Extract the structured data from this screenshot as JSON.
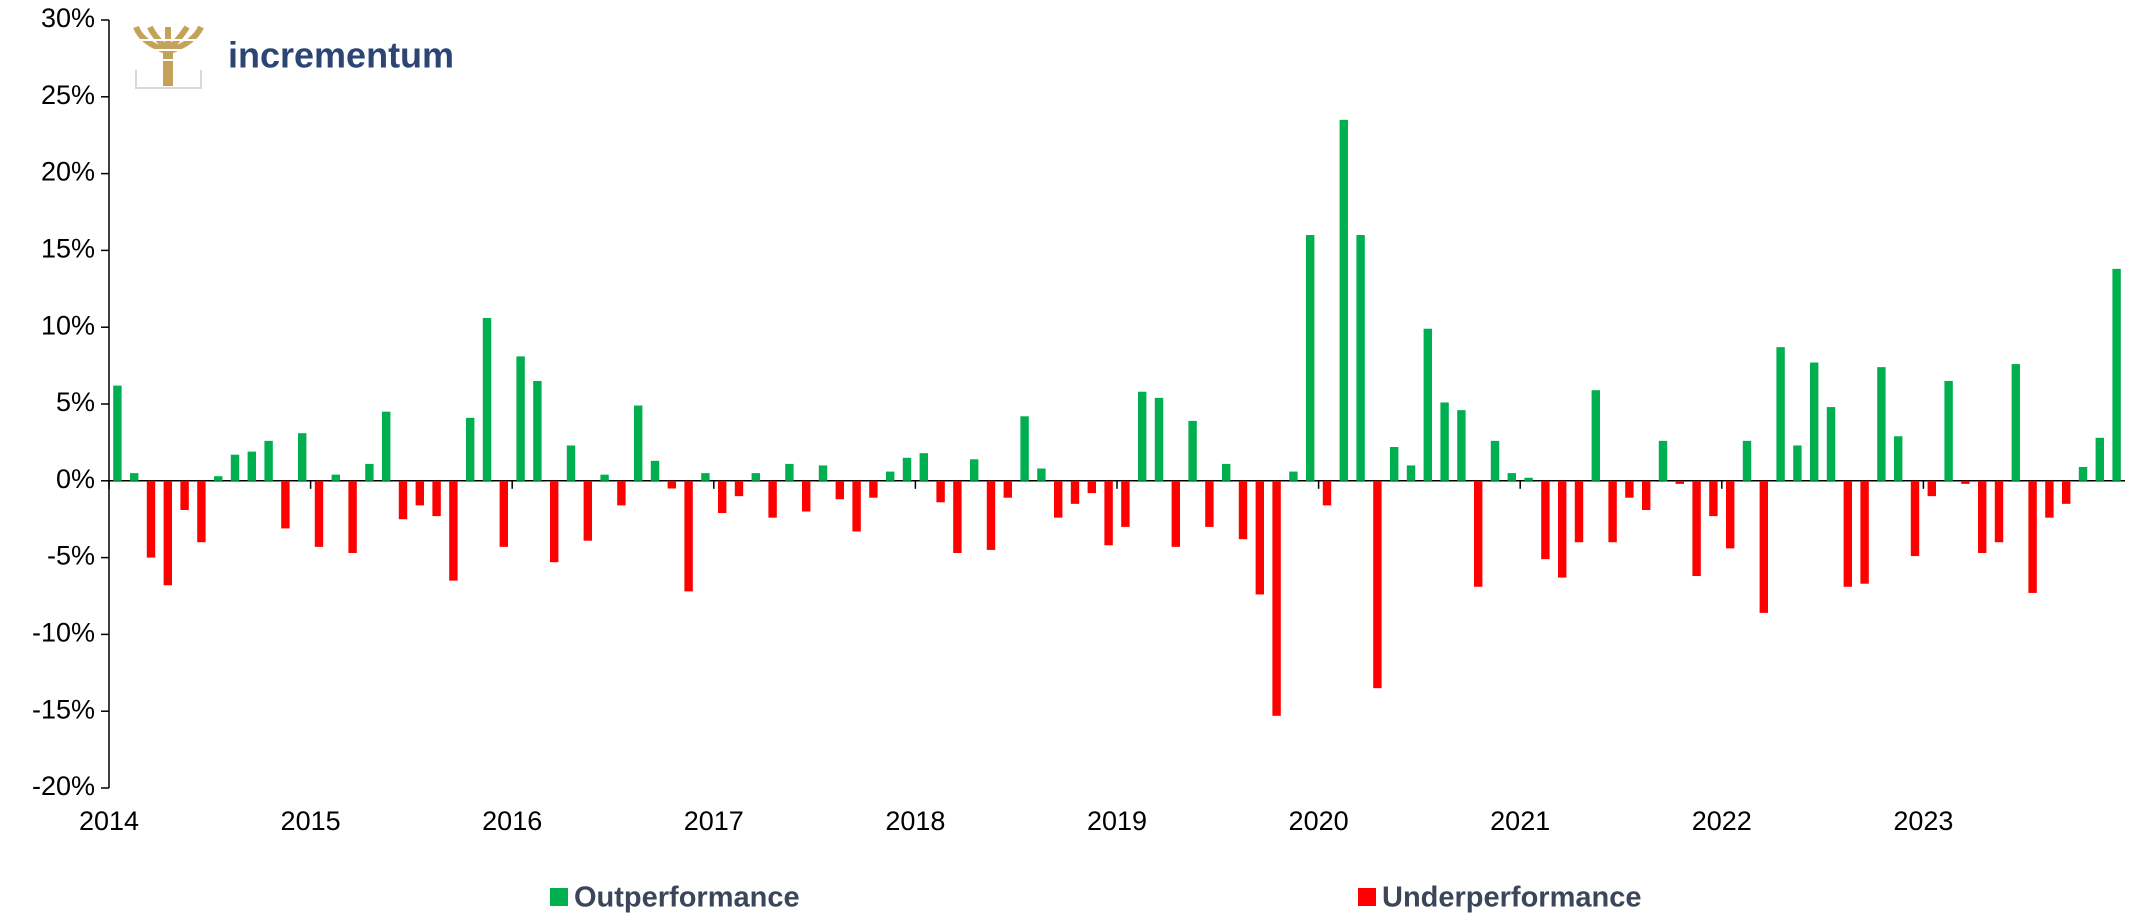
{
  "chart_data": {
    "type": "bar",
    "logo": "incrementum",
    "categories": [
      "2014",
      null,
      null,
      null,
      null,
      null,
      null,
      null,
      null,
      null,
      null,
      null,
      "2015",
      null,
      null,
      null,
      null,
      null,
      null,
      null,
      null,
      null,
      null,
      null,
      "2016",
      null,
      null,
      null,
      null,
      null,
      null,
      null,
      null,
      null,
      null,
      null,
      "2017",
      null,
      null,
      null,
      null,
      null,
      null,
      null,
      null,
      null,
      null,
      null,
      "2018",
      null,
      null,
      null,
      null,
      null,
      null,
      null,
      null,
      null,
      null,
      null,
      "2019",
      null,
      null,
      null,
      null,
      null,
      null,
      null,
      null,
      null,
      null,
      null,
      "2020",
      null,
      null,
      null,
      null,
      null,
      null,
      null,
      null,
      null,
      null,
      null,
      "2021",
      null,
      null,
      null,
      null,
      null,
      null,
      null,
      null,
      null,
      null,
      null,
      "2022",
      null,
      null,
      null,
      null,
      null,
      null,
      null,
      null,
      null,
      null,
      null,
      "2023",
      null,
      null,
      null,
      null,
      null,
      null,
      null,
      null,
      null,
      null,
      null
    ],
    "series": [
      {
        "name": "Outperformance",
        "color": "#00b050",
        "values": [
          6.2,
          0.5,
          null,
          null,
          null,
          null,
          0.3,
          1.7,
          1.9,
          2.6,
          null,
          3.1,
          null,
          0.4,
          null,
          1.1,
          4.5,
          null,
          null,
          null,
          null,
          4.1,
          10.6,
          null,
          8.1,
          6.5,
          null,
          2.3,
          null,
          0.4,
          null,
          4.9,
          1.3,
          null,
          null,
          0.5,
          null,
          null,
          0.5,
          null,
          1.1,
          null,
          1.0,
          null,
          null,
          null,
          0.6,
          1.5,
          1.8,
          null,
          null,
          1.4,
          null,
          null,
          4.2,
          0.8,
          null,
          null,
          null,
          null,
          null,
          5.8,
          5.4,
          null,
          3.9,
          null,
          1.1,
          null,
          null,
          null,
          0.6,
          16,
          null,
          23.5,
          16,
          null,
          2.2,
          1.0,
          9.9,
          5.1,
          4.6,
          null,
          2.6,
          0.5,
          0.2,
          null,
          null,
          null,
          5.9,
          null,
          null,
          null,
          2.6,
          null,
          null,
          null,
          null,
          2.6,
          null,
          8.7,
          2.3,
          7.7,
          4.8,
          null,
          null,
          7.4,
          2.9,
          null,
          null,
          6.5,
          null,
          null,
          null,
          7.6,
          null,
          null,
          null,
          0.9,
          2.8,
          13.8
        ]
      },
      {
        "name": "Underperformance",
        "color": "#ff0000",
        "values": [
          null,
          null,
          -5.0,
          -6.8,
          -1.9,
          -4.0,
          null,
          null,
          null,
          null,
          -3.1,
          null,
          -4.3,
          null,
          -4.7,
          null,
          null,
          -2.5,
          -1.6,
          -2.3,
          -6.5,
          null,
          null,
          -4.3,
          null,
          null,
          -5.3,
          null,
          -3.9,
          null,
          -1.6,
          null,
          null,
          -0.5,
          -7.2,
          null,
          -2.1,
          -1.0,
          null,
          -2.4,
          null,
          -2.0,
          null,
          -1.2,
          -3.3,
          -1.1,
          null,
          null,
          null,
          -1.4,
          -4.7,
          null,
          -4.5,
          -1.1,
          null,
          null,
          -2.4,
          -1.5,
          -0.8,
          -4.2,
          -3.0,
          null,
          null,
          -4.3,
          null,
          -3.0,
          null,
          -3.8,
          -7.4,
          -15.3,
          null,
          null,
          -1.6,
          null,
          null,
          -13.5,
          null,
          null,
          null,
          null,
          null,
          -6.9,
          null,
          null,
          null,
          -5.1,
          -6.3,
          -4.0,
          null,
          -4.0,
          -1.1,
          -1.9,
          null,
          -0.2,
          -6.2,
          -2.3,
          -4.4,
          null,
          -8.6,
          null,
          null,
          null,
          null,
          -6.9,
          -6.7,
          null,
          null,
          -4.9,
          -1.0,
          null,
          -0.2,
          -4.7,
          -4.0,
          null,
          -7.3,
          -2.4,
          -1.5,
          null,
          null,
          null
        ]
      }
    ],
    "ylim": [
      -20,
      30
    ],
    "yticks": [
      {
        "value": -20,
        "label": "-20%"
      },
      {
        "value": -15,
        "label": "-15%"
      },
      {
        "value": -10,
        "label": "-10%"
      },
      {
        "value": -5,
        "label": "-5%"
      },
      {
        "value": 0,
        "label": "0%"
      },
      {
        "value": 5,
        "label": "5%"
      },
      {
        "value": 10,
        "label": "10%"
      },
      {
        "value": 15,
        "label": "15%"
      },
      {
        "value": 20,
        "label": "20%"
      },
      {
        "value": 25,
        "label": "25%"
      },
      {
        "value": 30,
        "label": "30%"
      }
    ],
    "grid": false,
    "legend": "bottom"
  }
}
